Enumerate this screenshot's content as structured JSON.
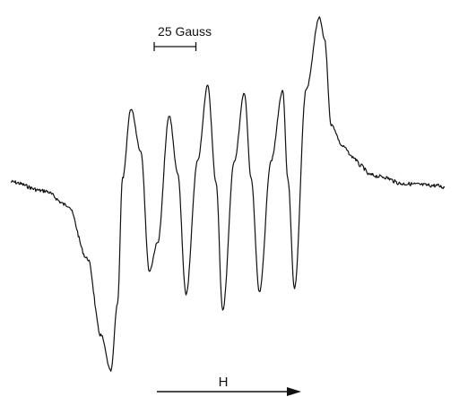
{
  "chart_data": {
    "type": "line",
    "title": "",
    "xlabel": "H",
    "ylabel": "",
    "x_unit": "Gauss",
    "scale_bar": {
      "label": "25 Gauss",
      "value": 25
    },
    "xlim": [
      0,
      260
    ],
    "ylim": [
      -1.0,
      1.0
    ],
    "grid": false,
    "series": [
      {
        "x": [
          0,
          20,
          34,
          46,
          54,
          60,
          64,
          67,
          72,
          78,
          83,
          88,
          95,
          100,
          105,
          112,
          118,
          123,
          127,
          134,
          140,
          144,
          149,
          156,
          163,
          166,
          170,
          177,
          185,
          188,
          192,
          199,
          205,
          210,
          215,
          222,
          235,
          255,
          260
        ],
        "y": [
          0.08,
          0.03,
          -0.05,
          -0.35,
          -0.78,
          -0.98,
          -0.6,
          0.1,
          0.49,
          0.25,
          -0.42,
          -0.26,
          0.45,
          0.13,
          -0.55,
          0.2,
          0.62,
          0.08,
          -0.64,
          0.2,
          0.58,
          0.1,
          -0.54,
          0.2,
          0.59,
          0.1,
          -0.52,
          0.6,
          1.0,
          0.88,
          0.4,
          0.28,
          0.22,
          0.17,
          0.12,
          0.11,
          0.07,
          0.06,
          0.05
        ]
      }
    ]
  }
}
